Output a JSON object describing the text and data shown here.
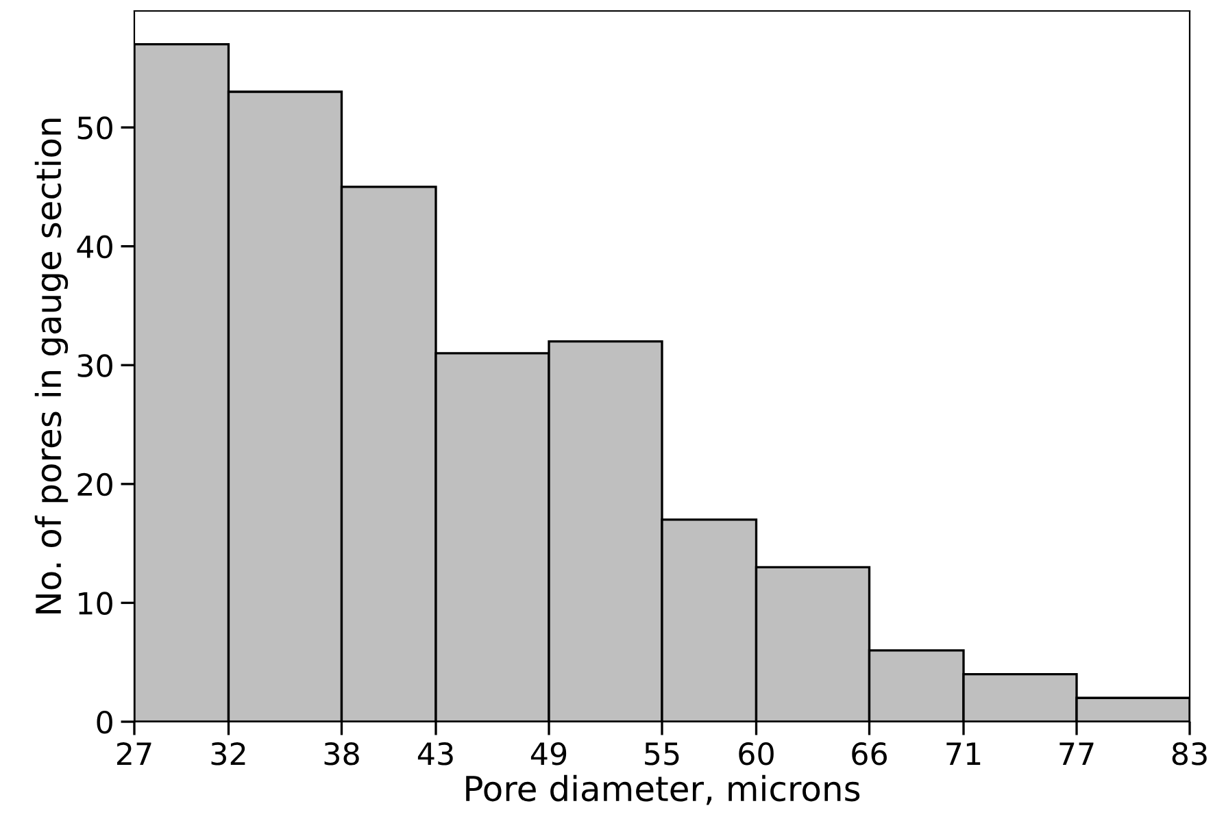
{
  "chart_data": {
    "type": "histogram",
    "xlabel": "Pore diameter, microns",
    "ylabel": "No. of pores in gauge section",
    "bins": [
      27,
      32,
      38,
      43,
      49,
      55,
      60,
      66,
      71,
      77,
      83
    ],
    "values": [
      57,
      53,
      45,
      31,
      32,
      17,
      13,
      6,
      4,
      2
    ],
    "color": "#bfbfbf",
    "xlim": [
      27,
      83
    ],
    "ylim": [
      0,
      59.8
    ],
    "xticks": [
      27,
      32,
      38,
      43,
      49,
      55,
      60,
      66,
      71,
      77,
      83
    ],
    "yticks": [
      0,
      10,
      20,
      30,
      40,
      50
    ],
    "grid": false,
    "legend": false
  }
}
